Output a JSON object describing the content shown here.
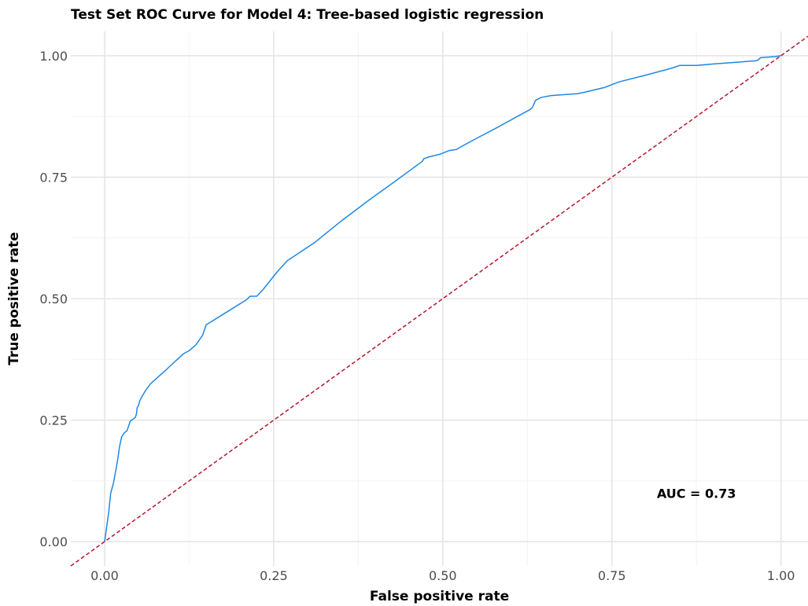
{
  "chart_data": {
    "type": "line",
    "title": "Test Set ROC Curve for Model 4: Tree-based logistic regression",
    "xlabel": "False positive rate",
    "ylabel": "True positive rate",
    "xlim": [
      -0.05,
      1.04
    ],
    "ylim": [
      -0.05,
      1.05
    ],
    "x_ticks": [
      0.0,
      0.25,
      0.5,
      0.75,
      1.0
    ],
    "x_tick_labels": [
      "0.00",
      "0.25",
      "0.50",
      "0.75",
      "1.00"
    ],
    "y_ticks": [
      0.0,
      0.25,
      0.5,
      0.75,
      1.0
    ],
    "y_tick_labels": [
      "0.00",
      "0.25",
      "0.50",
      "0.75",
      "1.00"
    ],
    "grid": true,
    "series": [
      {
        "color": "#1E88E5",
        "x": [
          0.0,
          0.006,
          0.009,
          0.012,
          0.013,
          0.015,
          0.017,
          0.02,
          0.022,
          0.025,
          0.028,
          0.03,
          0.033,
          0.036,
          0.038,
          0.042,
          0.045,
          0.047,
          0.048,
          0.05,
          0.052,
          0.055,
          0.06,
          0.068,
          0.08,
          0.092,
          0.105,
          0.117,
          0.125,
          0.135,
          0.145,
          0.15,
          0.18,
          0.21,
          0.215,
          0.225,
          0.235,
          0.255,
          0.27,
          0.31,
          0.35,
          0.39,
          0.43,
          0.47,
          0.472,
          0.48,
          0.495,
          0.51,
          0.52,
          0.53,
          0.55,
          0.58,
          0.63,
          0.633,
          0.637,
          0.645,
          0.66,
          0.7,
          0.71,
          0.74,
          0.76,
          0.8,
          0.84,
          0.85,
          0.875,
          0.9,
          0.93,
          0.965,
          0.97,
          0.99,
          1.0
        ],
        "y": [
          0.0,
          0.06,
          0.1,
          0.115,
          0.12,
          0.135,
          0.15,
          0.175,
          0.195,
          0.215,
          0.222,
          0.225,
          0.228,
          0.24,
          0.248,
          0.252,
          0.255,
          0.262,
          0.275,
          0.28,
          0.29,
          0.298,
          0.31,
          0.325,
          0.34,
          0.355,
          0.372,
          0.387,
          0.393,
          0.405,
          0.425,
          0.446,
          0.472,
          0.498,
          0.505,
          0.505,
          0.52,
          0.555,
          0.578,
          0.615,
          0.66,
          0.702,
          0.742,
          0.783,
          0.788,
          0.792,
          0.797,
          0.805,
          0.807,
          0.815,
          0.83,
          0.852,
          0.89,
          0.895,
          0.908,
          0.914,
          0.918,
          0.922,
          0.925,
          0.935,
          0.946,
          0.96,
          0.975,
          0.98,
          0.98,
          0.983,
          0.986,
          0.99,
          0.996,
          0.998,
          1.0
        ]
      },
      {
        "color": "#B2182B",
        "dashed": true,
        "x": [
          -0.05,
          1.04
        ],
        "y": [
          -0.05,
          1.04
        ]
      }
    ],
    "annotations": [
      {
        "text": "AUC = 0.73",
        "x": 0.875,
        "y": 0.1
      }
    ]
  }
}
